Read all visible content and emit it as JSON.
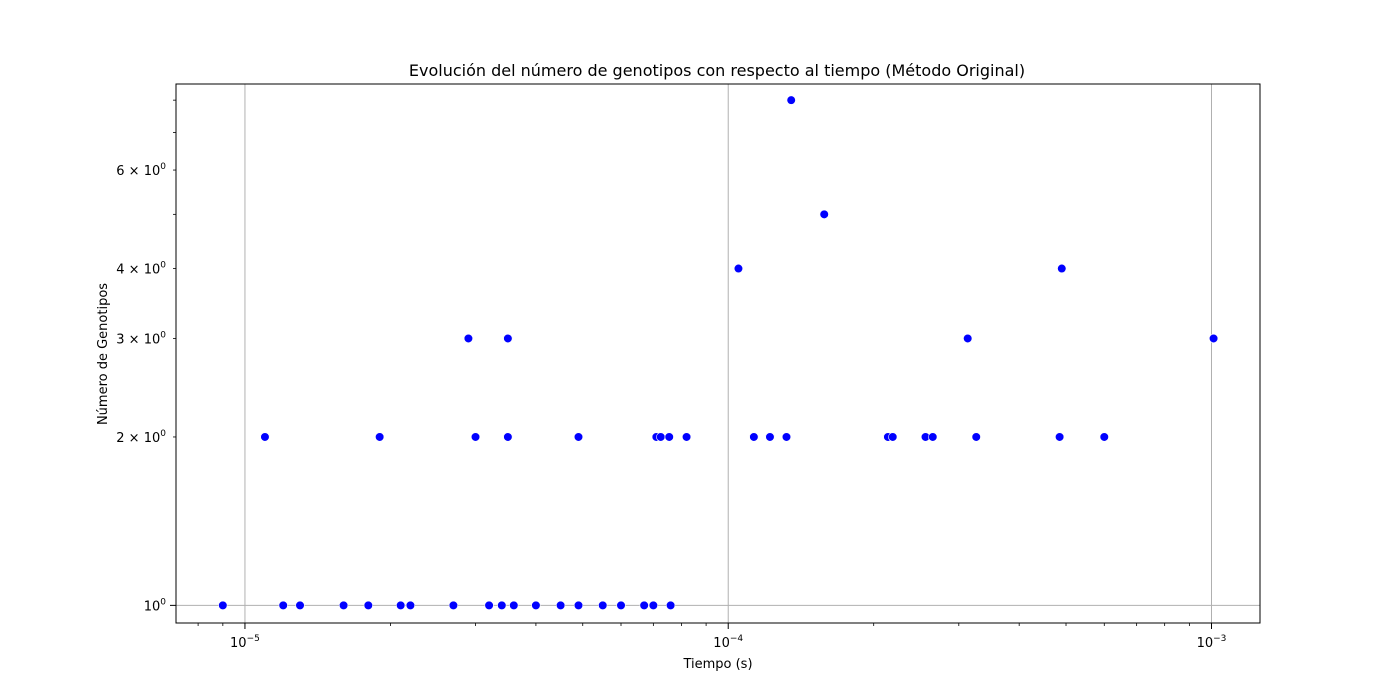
{
  "chart_data": {
    "type": "scatter",
    "title": "Evolución del número de genotipos con respecto al tiempo (Método Original)",
    "xlabel": "Tiempo (s)",
    "ylabel": "Número de Genotipos",
    "xscale": "log",
    "yscale": "log",
    "xlim": [
      7.2e-06,
      0.00126
    ],
    "ylim": [
      0.93,
      8.55
    ],
    "grid": "major",
    "marker_color": "#0000ff",
    "xticks": [
      {
        "value": 1e-05,
        "base": "10",
        "exp": "−5"
      },
      {
        "value": 0.0001,
        "base": "10",
        "exp": "−4"
      },
      {
        "value": 0.001,
        "base": "10",
        "exp": "−3"
      }
    ],
    "yticks": [
      {
        "value": 1,
        "mant": "",
        "base": "10",
        "exp": "0"
      },
      {
        "value": 2,
        "mant": "2 × ",
        "base": "10",
        "exp": "0"
      },
      {
        "value": 3,
        "mant": "3 × ",
        "base": "10",
        "exp": "0"
      },
      {
        "value": 4,
        "mant": "4 × ",
        "base": "10",
        "exp": "0"
      },
      {
        "value": 6,
        "mant": "6 × ",
        "base": "10",
        "exp": "0"
      }
    ],
    "points": [
      {
        "x": 9e-06,
        "y": 1
      },
      {
        "x": 1.2e-05,
        "y": 1
      },
      {
        "x": 1.3e-05,
        "y": 1
      },
      {
        "x": 1.6e-05,
        "y": 1
      },
      {
        "x": 1.8e-05,
        "y": 1
      },
      {
        "x": 2.1e-05,
        "y": 1
      },
      {
        "x": 2.2e-05,
        "y": 1
      },
      {
        "x": 2.7e-05,
        "y": 1
      },
      {
        "x": 3.2e-05,
        "y": 1
      },
      {
        "x": 3.4e-05,
        "y": 1
      },
      {
        "x": 3.6e-05,
        "y": 1
      },
      {
        "x": 4e-05,
        "y": 1
      },
      {
        "x": 4.5e-05,
        "y": 1
      },
      {
        "x": 4.9e-05,
        "y": 1
      },
      {
        "x": 5.5e-05,
        "y": 1
      },
      {
        "x": 6e-05,
        "y": 1
      },
      {
        "x": 6.7e-05,
        "y": 1
      },
      {
        "x": 7e-05,
        "y": 1
      },
      {
        "x": 7.6e-05,
        "y": 1
      },
      {
        "x": 1.1e-05,
        "y": 2
      },
      {
        "x": 1.9e-05,
        "y": 2
      },
      {
        "x": 3e-05,
        "y": 2
      },
      {
        "x": 3.5e-05,
        "y": 2
      },
      {
        "x": 4.9e-05,
        "y": 2
      },
      {
        "x": 7.1e-05,
        "y": 2
      },
      {
        "x": 7.25e-05,
        "y": 2
      },
      {
        "x": 7.55e-05,
        "y": 2
      },
      {
        "x": 8.2e-05,
        "y": 2
      },
      {
        "x": 0.000113,
        "y": 2
      },
      {
        "x": 0.000122,
        "y": 2
      },
      {
        "x": 0.000132,
        "y": 2
      },
      {
        "x": 0.000214,
        "y": 2
      },
      {
        "x": 0.000219,
        "y": 2
      },
      {
        "x": 0.000256,
        "y": 2
      },
      {
        "x": 0.000265,
        "y": 2
      },
      {
        "x": 0.000326,
        "y": 2
      },
      {
        "x": 0.000485,
        "y": 2
      },
      {
        "x": 0.0006,
        "y": 2
      },
      {
        "x": 2.9e-05,
        "y": 3
      },
      {
        "x": 3.5e-05,
        "y": 3
      },
      {
        "x": 0.000313,
        "y": 3
      },
      {
        "x": 0.00101,
        "y": 3
      },
      {
        "x": 0.000105,
        "y": 4
      },
      {
        "x": 0.00049,
        "y": 4
      },
      {
        "x": 0.000158,
        "y": 5
      },
      {
        "x": 0.000135,
        "y": 8
      }
    ]
  }
}
